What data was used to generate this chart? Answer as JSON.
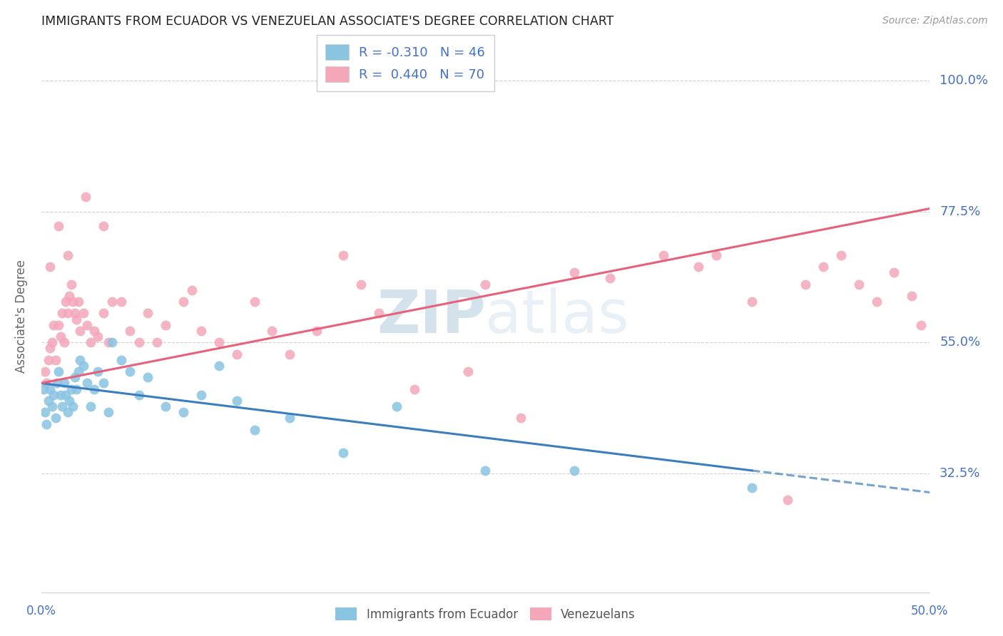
{
  "title": "IMMIGRANTS FROM ECUADOR VS VENEZUELAN ASSOCIATE'S DEGREE CORRELATION CHART",
  "source": "Source: ZipAtlas.com",
  "ylabel": "Associate's Degree",
  "ytick_labels": [
    "32.5%",
    "55.0%",
    "77.5%",
    "100.0%"
  ],
  "ytick_values": [
    32.5,
    55.0,
    77.5,
    100.0
  ],
  "xmin": 0.0,
  "xmax": 50.0,
  "ymin": 12.0,
  "ymax": 107.0,
  "legend_entry1": "R = -0.310   N = 46",
  "legend_entry2": "R =  0.440   N = 70",
  "legend_label1": "Immigrants from Ecuador",
  "legend_label2": "Venezuelans",
  "blue_color": "#89c4e1",
  "pink_color": "#f4a7b9",
  "blue_line_color": "#3a7ebf",
  "pink_line_color": "#e8607a",
  "axis_label_color": "#4472c4",
  "grid_color": "#d0d0d0",
  "watermark_color": "#dce8f0",
  "blue_scatter_x": [
    0.2,
    0.3,
    0.4,
    0.5,
    0.6,
    0.7,
    0.8,
    0.9,
    1.0,
    1.1,
    1.2,
    1.3,
    1.4,
    1.5,
    1.6,
    1.7,
    1.8,
    1.9,
    2.0,
    2.1,
    2.2,
    2.4,
    2.6,
    2.8,
    3.0,
    3.2,
    3.5,
    3.8,
    4.0,
    4.5,
    5.0,
    5.5,
    6.0,
    7.0,
    8.0,
    9.0,
    10.0,
    11.0,
    12.0,
    14.0,
    17.0,
    20.0,
    25.0,
    30.0,
    40.0,
    0.15
  ],
  "blue_scatter_y": [
    43,
    41,
    45,
    47,
    44,
    46,
    42,
    48,
    50,
    46,
    44,
    48,
    46,
    43,
    45,
    47,
    44,
    49,
    47,
    50,
    52,
    51,
    48,
    44,
    47,
    50,
    48,
    43,
    55,
    52,
    50,
    46,
    49,
    44,
    43,
    46,
    51,
    45,
    40,
    42,
    36,
    44,
    33,
    33,
    30,
    47
  ],
  "pink_scatter_x": [
    0.2,
    0.3,
    0.4,
    0.5,
    0.6,
    0.7,
    0.8,
    1.0,
    1.1,
    1.2,
    1.3,
    1.4,
    1.5,
    1.6,
    1.7,
    1.8,
    1.9,
    2.0,
    2.1,
    2.2,
    2.4,
    2.6,
    2.8,
    3.0,
    3.2,
    3.5,
    3.8,
    4.0,
    4.5,
    5.0,
    5.5,
    6.0,
    6.5,
    7.0,
    8.0,
    8.5,
    9.0,
    10.0,
    11.0,
    12.0,
    13.0,
    14.0,
    15.5,
    17.0,
    18.0,
    19.0,
    21.0,
    24.0,
    25.0,
    27.0,
    30.0,
    32.0,
    35.0,
    37.0,
    38.0,
    40.0,
    42.0,
    43.0,
    44.0,
    45.0,
    46.0,
    47.0,
    48.0,
    49.0,
    49.5,
    0.5,
    1.0,
    1.5,
    2.5,
    3.5
  ],
  "pink_scatter_y": [
    50,
    48,
    52,
    54,
    55,
    58,
    52,
    58,
    56,
    60,
    55,
    62,
    60,
    63,
    65,
    62,
    60,
    59,
    62,
    57,
    60,
    58,
    55,
    57,
    56,
    60,
    55,
    62,
    62,
    57,
    55,
    60,
    55,
    58,
    62,
    64,
    57,
    55,
    53,
    62,
    57,
    53,
    57,
    70,
    65,
    60,
    47,
    50,
    65,
    42,
    67,
    66,
    70,
    68,
    70,
    62,
    28,
    65,
    68,
    70,
    65,
    62,
    67,
    63,
    58,
    68,
    75,
    70,
    80,
    75
  ]
}
